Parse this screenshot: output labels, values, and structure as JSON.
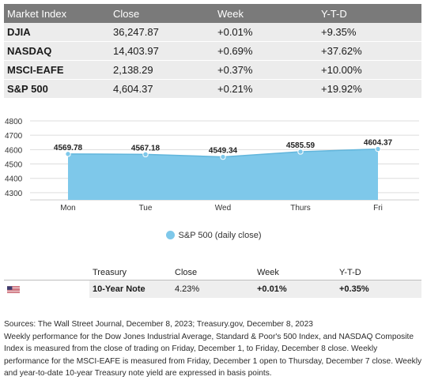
{
  "market_table": {
    "headers": [
      "Market Index",
      "Close",
      "Week",
      "Y-T-D"
    ],
    "rows": [
      {
        "name": "DJIA",
        "close": "36,247.87",
        "week": "+0.01%",
        "ytd": "+9.35%"
      },
      {
        "name": "NASDAQ",
        "close": "14,403.97",
        "week": "+0.69%",
        "ytd": "+37.62%"
      },
      {
        "name": "MSCI-EAFE",
        "close": "2,138.29",
        "week": "+0.37%",
        "ytd": "+10.00%"
      },
      {
        "name": "S&P 500",
        "close": "4,604.37",
        "week": "+0.21%",
        "ytd": "+19.92%"
      }
    ]
  },
  "chart_data": {
    "type": "area",
    "categories": [
      "Mon",
      "Tue",
      "Wed",
      "Thurs",
      "Fri"
    ],
    "series": [
      {
        "name": "S&P 500 (daily close)",
        "values": [
          4569.78,
          4567.18,
          4549.34,
          4585.59,
          4604.37
        ]
      }
    ],
    "data_labels": [
      "4569.78",
      "4567.18",
      "4549.34",
      "4585.59",
      "4604.37"
    ],
    "y_ticks": [
      4300,
      4400,
      4500,
      4600,
      4700,
      4800
    ],
    "ylim": [
      4250,
      4800
    ],
    "fill_color": "#7ec8ea",
    "line_color": "#62b6dc",
    "grid": true,
    "legend_position": "bottom-center"
  },
  "legend": {
    "label": "S&P 500 (daily close)"
  },
  "treasury_table": {
    "headers": [
      "",
      "Treasury",
      "Close",
      "Week",
      "Y-T-D"
    ],
    "row": {
      "flag_icon": "us-flag-icon",
      "name": "10-Year Note",
      "close": "4.23%",
      "week": "+0.01%",
      "ytd": "+0.35%"
    }
  },
  "notes": {
    "sources": "Sources: The Wall Street Journal, December 8, 2023; Treasury.gov, December 8, 2023",
    "body": "Weekly performance for the Dow Jones Industrial Average, Standard & Poor's 500 Index, and NASDAQ Composite Index is measured from the close of trading on Friday, December 1, to Friday, December 8 close. Weekly performance for the MSCI-EAFE is measured from Friday, December 1 open to Thursday, December 7 close. Weekly and year-to-date 10-year Treasury note yield are expressed in basis points."
  }
}
